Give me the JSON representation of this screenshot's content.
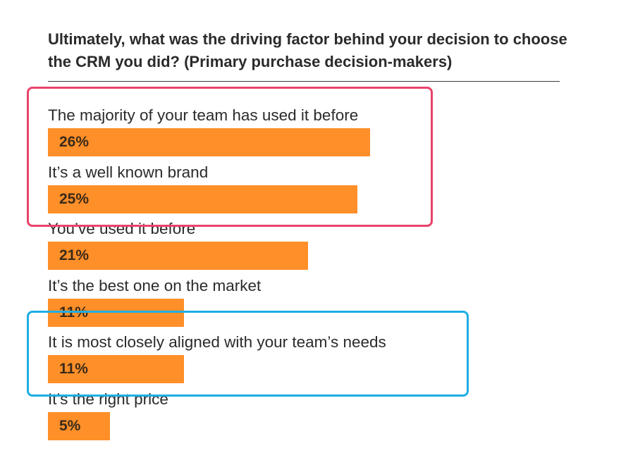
{
  "title_bold": "Ultimately, what was the driving factor behind your decision to choose the CRM you did?",
  "title_regular": "(Primary purchase decision-makers)",
  "colors": {
    "bar": "#ff8f28",
    "highlight_red": "#e8446a",
    "highlight_blue": "#1eaee4",
    "text": "#2b2b2b"
  },
  "highlights": [
    {
      "color": "#e8446a",
      "covers": [
        "The majority of your team has used it before",
        "It’s a well known brand"
      ]
    },
    {
      "color": "#1eaee4",
      "covers": [
        "It is most closely aligned with your team’s needs"
      ]
    }
  ],
  "chart_data": {
    "type": "bar",
    "orientation": "horizontal",
    "title": "Ultimately, what was the driving factor behind your decision to choose the CRM you did? (Primary purchase decision-makers)",
    "categories": [
      "The majority of your team has used it before",
      "It’s a well known brand",
      "You’ve used it before",
      "It’s the best one on the market",
      "It is most closely aligned with your team’s needs",
      "It’s the right price"
    ],
    "values": [
      26,
      25,
      21,
      11,
      11,
      5
    ],
    "value_labels": [
      "26%",
      "25%",
      "21%",
      "11%",
      "11%",
      "5%"
    ],
    "unit": "%",
    "grid": false,
    "legend": "none"
  }
}
